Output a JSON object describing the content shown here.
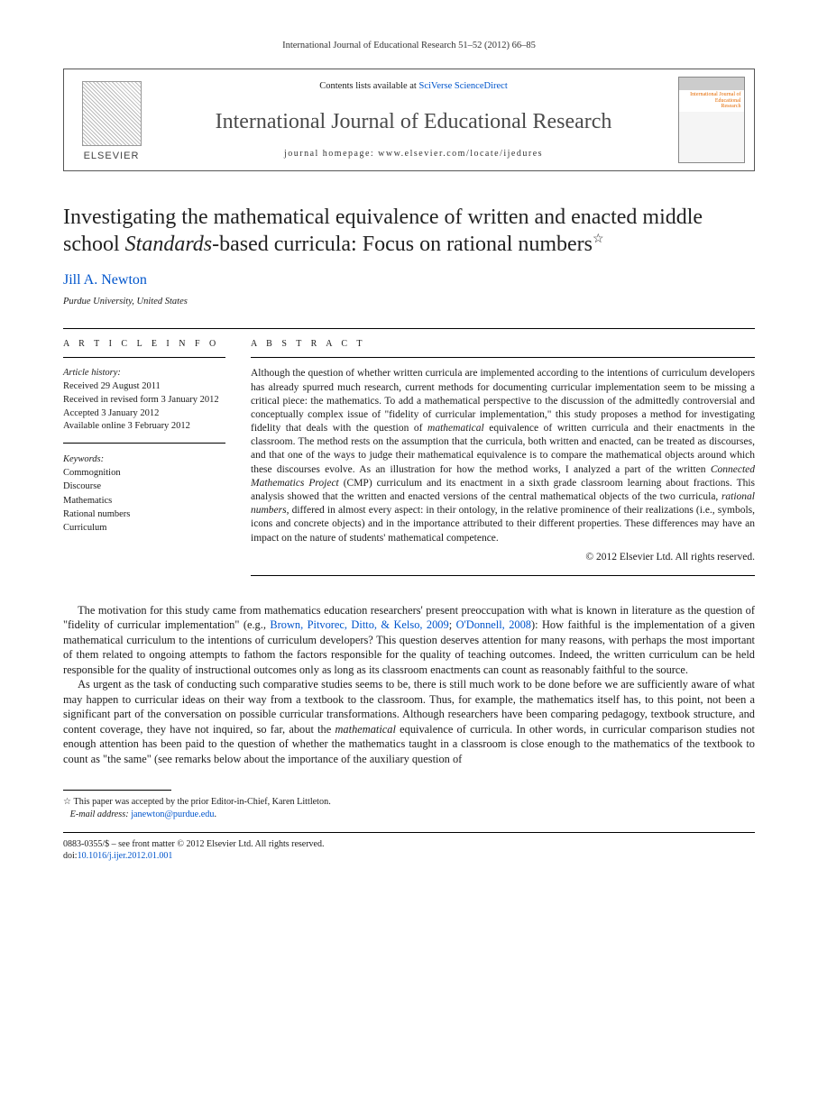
{
  "running_head": "International Journal of Educational Research 51–52 (2012) 66–85",
  "masthead": {
    "elsevier_word": "ELSEVIER",
    "contents_prefix": "Contents lists available at ",
    "contents_link": "SciVerse ScienceDirect",
    "journal_name": "International Journal of Educational Research",
    "homepage_label": "journal homepage: www.elsevier.com/locate/ijedures",
    "cover_line1": "International Journal of",
    "cover_line2": "Educational",
    "cover_line3": "Research"
  },
  "title_part1": "Investigating the mathematical equivalence of written and enacted middle school ",
  "title_ital": "Standards",
  "title_part2": "-based curricula: Focus on rational numbers",
  "star": "☆",
  "author": "Jill A. Newton",
  "affiliation": "Purdue University, United States",
  "info_heading": "A R T I C L E   I N F O",
  "abs_heading": "A B S T R A C T",
  "history_label": "Article history:",
  "history": {
    "l1": "Received 29 August 2011",
    "l2": "Received in revised form 3 January 2012",
    "l3": "Accepted 3 January 2012",
    "l4": "Available online 3 February 2012"
  },
  "keywords_label": "Keywords:",
  "keywords": [
    "Commognition",
    "Discourse",
    "Mathematics",
    "Rational numbers",
    "Curriculum"
  ],
  "abstract_html": "Although the question of whether written curricula are implemented according to the intentions of curriculum developers has already spurred much research, current methods for documenting curricular implementation seem to be missing a critical piece: the mathematics. To add a mathematical perspective to the discussion of the admittedly controversial and conceptually complex issue of \"fidelity of curricular implementation,\" this study proposes a method for investigating fidelity that deals with the question of <em>mathematical</em> equivalence of written curricula and their enactments in the classroom. The method rests on the assumption that the curricula, both written and enacted, can be treated as discourses, and that one of the ways to judge their mathematical equivalence is to compare the mathematical objects around which these discourses evolve. As an illustration for how the method works, I analyzed a part of the written <em>Connected Mathematics Project</em> (CMP) curriculum and its enactment in a sixth grade classroom learning about fractions. This analysis showed that the written and enacted versions of the central mathematical objects of the two curricula, <em>rational numbers</em>, differed in almost every aspect: in their ontology, in the relative prominence of their realizations (i.e., symbols, icons and concrete objects) and in the importance attributed to their different properties. These differences may have an impact on the nature of students' mathematical competence.",
  "abstract_copyright": "© 2012 Elsevier Ltd. All rights reserved.",
  "body": {
    "p1_html": "The motivation for this study came from mathematics education researchers' present preoccupation with what is known in literature as the question of \"fidelity of curricular implementation\" (e.g., <a href='#' data-name='citation-link' data-interactable='true'>Brown, Pitvorec, Ditto, &amp; Kelso, 2009</a>; <a href='#' data-name='citation-link' data-interactable='true'>O'Donnell, 2008</a>): How faithful is the implementation of a given mathematical curriculum to the intentions of curriculum developers? This question deserves attention for many reasons, with perhaps the most important of them related to ongoing attempts to fathom the factors responsible for the quality of teaching outcomes. Indeed, the written curriculum can be held responsible for the quality of instructional outcomes only as long as its classroom enactments can count as reasonably faithful to the source.",
    "p2_html": "As urgent as the task of conducting such comparative studies seems to be, there is still much work to be done before we are sufficiently aware of what may happen to curricular ideas on their way from a textbook to the classroom. Thus, for example, the mathematics itself has, to this point, not been a significant part of the conversation on possible curricular transformations. Although researchers have been comparing pedagogy, textbook structure, and content coverage, they have not inquired, so far, about the <em>mathematical</em> equivalence of curricula. In other words, in curricular comparison studies not enough attention has been paid to the question of whether the mathematics taught in a classroom is close enough to the mathematics of the textbook to count as \"the same\" (see remarks below about the importance of the auxiliary question of"
  },
  "footnote": {
    "star": "☆",
    "text": "This paper was accepted by the prior Editor-in-Chief, Karen Littleton.",
    "email_label": "E-mail address:",
    "email": "janewton@purdue.edu"
  },
  "copyright": {
    "line1": "0883-0355/$ – see front matter © 2012 Elsevier Ltd. All rights reserved.",
    "doi_label": "doi:",
    "doi": "10.1016/j.ijer.2012.01.001"
  }
}
